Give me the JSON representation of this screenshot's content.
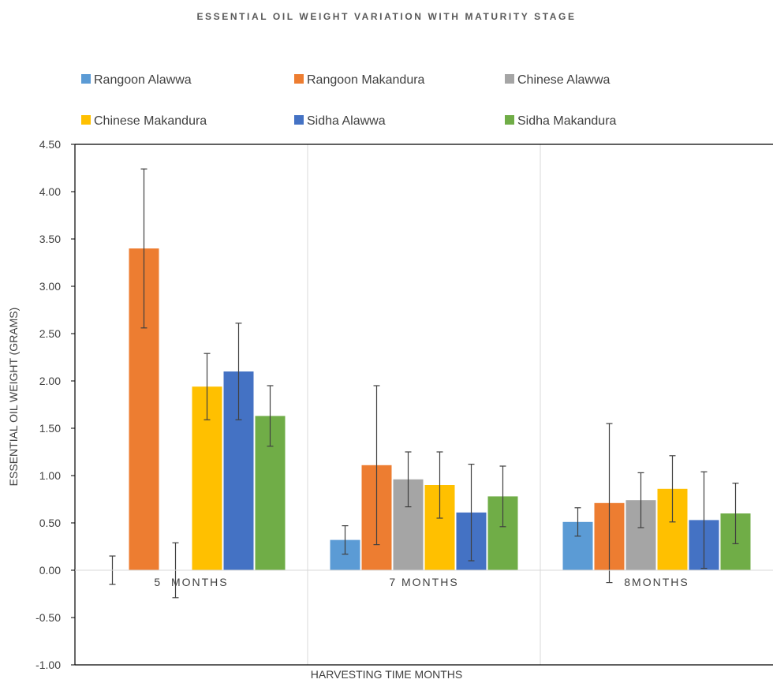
{
  "chart_data": {
    "type": "bar",
    "title": "ESSENTIAL OIL WEIGHT VARIATION WITH MATURITY STAGE",
    "xlabel": "HARVESTING TIME MONTHS",
    "ylabel": "ESSENTIAL OIL WEIGHT (GRAMS)",
    "categories": [
      "5  MONTHS",
      "7 MONTHS",
      "8MONTHS"
    ],
    "ylim": [
      -1.0,
      4.5
    ],
    "ytick_step": 0.5,
    "yticks": [
      "4.50",
      "4.00",
      "3.50",
      "3.00",
      "2.50",
      "2.00",
      "1.50",
      "1.00",
      "0.50",
      "0.00",
      "-0.50",
      "-1.00"
    ],
    "grid": "vertical-category-separators",
    "legend": "top",
    "series": [
      {
        "name": "Rangoon Alawwa",
        "color": "#5B9BD5",
        "values": [
          0.0,
          0.32,
          0.51
        ],
        "errors": [
          0.15,
          0.15,
          0.15
        ]
      },
      {
        "name": "Rangoon Makandura",
        "color": "#ED7D31",
        "values": [
          3.4,
          1.11,
          0.71
        ],
        "errors": [
          0.84,
          0.84,
          0.84
        ]
      },
      {
        "name": "Chinese Alawwa",
        "color": "#A5A5A5",
        "values": [
          0.0,
          0.96,
          0.74
        ],
        "errors": [
          0.29,
          0.29,
          0.29
        ]
      },
      {
        "name": "Chinese Makandura",
        "color": "#FFC000",
        "values": [
          1.94,
          0.9,
          0.86
        ],
        "errors": [
          0.35,
          0.35,
          0.35
        ]
      },
      {
        "name": "Sidha Alawwa",
        "color": "#4472C4",
        "values": [
          2.1,
          0.61,
          0.53
        ],
        "errors": [
          0.51,
          0.51,
          0.51
        ]
      },
      {
        "name": "Sidha Makandura",
        "color": "#70AD47",
        "values": [
          1.63,
          0.78,
          0.6
        ],
        "errors": [
          0.32,
          0.32,
          0.32
        ]
      }
    ]
  }
}
